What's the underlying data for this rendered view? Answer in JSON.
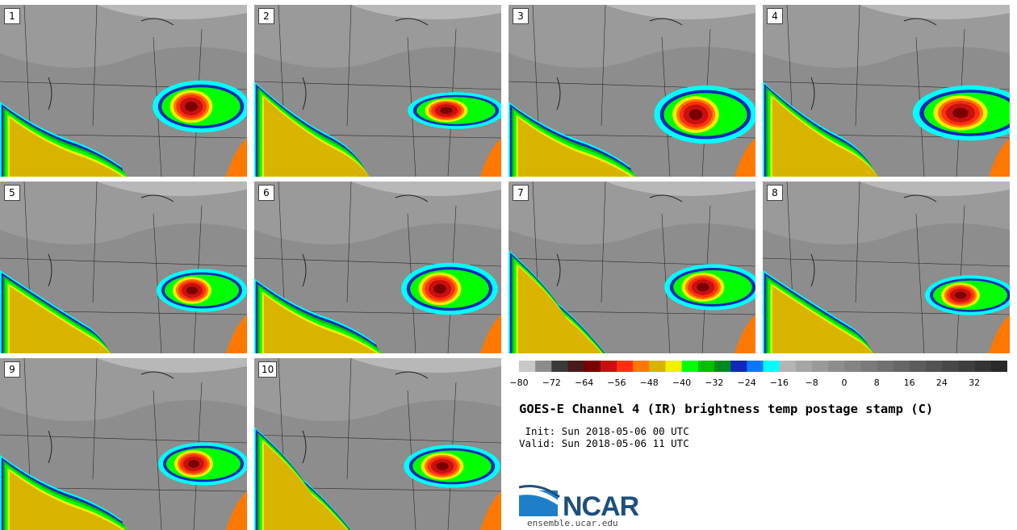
{
  "panels": [
    {
      "label": "1",
      "storm": [
        237,
        132,
        22,
        17
      ],
      "band": "sw1"
    },
    {
      "label": "2",
      "storm": [
        553,
        137,
        22,
        12
      ],
      "band": "sw2"
    },
    {
      "label": "3",
      "storm": [
        862,
        142,
        24,
        19
      ],
      "band": "sw1"
    },
    {
      "label": "4",
      "storm": [
        1190,
        140,
        28,
        18
      ],
      "band": "sw2"
    },
    {
      "label": "5",
      "storm": [
        238,
        360,
        20,
        14
      ],
      "band": "sw3"
    },
    {
      "label": "6",
      "storm": [
        545,
        358,
        22,
        17
      ],
      "band": "sw1"
    },
    {
      "label": "7",
      "storm": [
        871,
        356,
        22,
        15
      ],
      "band": "sw4"
    },
    {
      "label": "8",
      "storm": [
        1190,
        366,
        20,
        13
      ],
      "band": "sw3"
    },
    {
      "label": "9",
      "storm": [
        240,
        575,
        20,
        14
      ],
      "band": "sw1"
    },
    {
      "label": "10",
      "storm": [
        548,
        578,
        22,
        14
      ],
      "band": "sw4"
    }
  ],
  "colorbar": {
    "colors": [
      "#c8c8c8",
      "#8c8c8c",
      "#3a3a3a",
      "#4a1a1a",
      "#7a0000",
      "#c81010",
      "#ff3010",
      "#ff7800",
      "#d8b400",
      "#f0f000",
      "#00ff00",
      "#00c000",
      "#008a20",
      "#1028b8",
      "#0a78ff",
      "#00ffff",
      "#b4b4b4",
      "#a6a6a6",
      "#9a9a9a",
      "#8e8e8e",
      "#848484",
      "#7a7a7a",
      "#707070",
      "#666666",
      "#5c5c5c",
      "#525252",
      "#484848",
      "#3e3e3e",
      "#343434",
      "#2a2a2a"
    ],
    "ticks": [
      "−80",
      "−72",
      "−64",
      "−56",
      "−48",
      "−40",
      "−32",
      "−24",
      "−16",
      "−8",
      "0",
      "8",
      "16",
      "24",
      "32"
    ]
  },
  "title": "GOES-E Channel 4 (IR) brightness temp postage stamp (C)",
  "init": " Init: Sun 2018-05-06 00 UTC",
  "valid": "Valid: Sun 2018-05-06 11 UTC",
  "logo_text": "NCAR",
  "url": "ensemble.ucar.edu"
}
